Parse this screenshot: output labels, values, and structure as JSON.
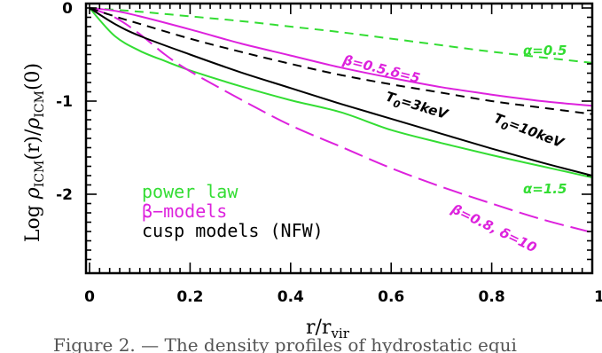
{
  "chart_data": {
    "type": "line",
    "xlabel_main": "r/r",
    "xlabel_sub": "vir",
    "ylabel_pre": "Log ",
    "ylabel_rho1": "ρ",
    "ylabel_sub1": "ICM",
    "ylabel_mid": "(r)/",
    "ylabel_rho2": "ρ",
    "ylabel_sub2": "ICM",
    "ylabel_post": "(0)",
    "xlim": [
      0,
      1
    ],
    "ylim": [
      -2.8,
      0.05
    ],
    "x_ticks": [
      0,
      0.2,
      0.4,
      0.6,
      0.8,
      1
    ],
    "x_tick_labels": [
      "0",
      "0.2",
      "0.4",
      "0.6",
      "0.8",
      "1"
    ],
    "y_ticks": [
      0,
      -1,
      -2
    ],
    "y_tick_labels": [
      "0",
      "-1",
      "-2"
    ],
    "colors": {
      "power_law": "#33dd33",
      "beta_models": "#dd22dd",
      "cusp_models": "#000000"
    },
    "series": [
      {
        "name": "α=0.5",
        "color": "#33dd33",
        "dash": "dashed",
        "x": [
          0,
          0.1,
          0.2,
          0.3,
          0.4,
          0.5,
          0.6,
          0.7,
          0.8,
          0.9,
          1.0
        ],
        "y": [
          0,
          -0.04,
          -0.09,
          -0.14,
          -0.2,
          -0.26,
          -0.33,
          -0.4,
          -0.47,
          -0.53,
          -0.59
        ]
      },
      {
        "name": "α=1.5",
        "color": "#33dd33",
        "dash": "solid",
        "x": [
          0,
          0.05,
          0.1,
          0.15,
          0.2,
          0.3,
          0.4,
          0.5,
          0.6,
          0.7,
          0.8,
          0.9,
          1.0
        ],
        "y": [
          0,
          -0.3,
          -0.46,
          -0.57,
          -0.67,
          -0.84,
          -0.99,
          -1.12,
          -1.31,
          -1.45,
          -1.58,
          -1.7,
          -1.82
        ]
      },
      {
        "name": "β=0.5,δ=5",
        "color": "#dd22dd",
        "dash": "solid",
        "x": [
          0,
          0.05,
          0.1,
          0.2,
          0.3,
          0.4,
          0.5,
          0.6,
          0.7,
          0.8,
          0.9,
          1.0
        ],
        "y": [
          0,
          -0.03,
          -0.09,
          -0.23,
          -0.38,
          -0.51,
          -0.64,
          -0.75,
          -0.85,
          -0.93,
          -1.0,
          -1.05
        ]
      },
      {
        "name": "β=0.8, δ=10",
        "color": "#dd22dd",
        "dash": "longdash",
        "x": [
          0,
          0.05,
          0.1,
          0.15,
          0.2,
          0.3,
          0.4,
          0.5,
          0.6,
          0.7,
          0.8,
          0.9,
          1.0
        ],
        "y": [
          0,
          -0.1,
          -0.28,
          -0.5,
          -0.68,
          -0.98,
          -1.26,
          -1.49,
          -1.72,
          -1.92,
          -2.1,
          -2.27,
          -2.41
        ]
      },
      {
        "name": "T0=3keV",
        "color": "#000000",
        "dash": "dashed",
        "x": [
          0,
          0.05,
          0.1,
          0.2,
          0.3,
          0.4,
          0.5,
          0.6,
          0.7,
          0.8,
          0.9,
          1.0
        ],
        "y": [
          0,
          -0.09,
          -0.17,
          -0.33,
          -0.47,
          -0.6,
          -0.72,
          -0.82,
          -0.91,
          -1.0,
          -1.07,
          -1.14
        ]
      },
      {
        "name": "T0=10keV",
        "color": "#000000",
        "dash": "solid",
        "x": [
          0,
          0.05,
          0.1,
          0.2,
          0.3,
          0.4,
          0.5,
          0.6,
          0.7,
          0.8,
          0.9,
          1.0
        ],
        "y": [
          0,
          -0.17,
          -0.3,
          -0.5,
          -0.69,
          -0.86,
          -1.03,
          -1.19,
          -1.35,
          -1.51,
          -1.66,
          -1.8
        ]
      }
    ],
    "annotations": [
      {
        "id": "alpha05",
        "text": "α=0.5",
        "color": "#33dd33"
      },
      {
        "id": "beta05",
        "text": "β=0.5,δ=5",
        "color": "#dd22dd"
      },
      {
        "id": "t3",
        "text_main": "T",
        "text_sub": "0",
        "text_rest": "=3keV",
        "color": "#000000"
      },
      {
        "id": "t10",
        "text_main": "T",
        "text_sub": "0",
        "text_rest": "=10keV",
        "color": "#000000"
      },
      {
        "id": "alpha15",
        "text": "α=1.5",
        "color": "#33dd33"
      },
      {
        "id": "beta08",
        "text": "β=0.8, δ=10",
        "color": "#dd22dd"
      }
    ],
    "legend": [
      {
        "label": "power law",
        "color": "#33dd33"
      },
      {
        "label": "β−models",
        "color": "#dd22dd"
      },
      {
        "label": "cusp models (NFW)",
        "color": "#000000"
      }
    ]
  },
  "caption": "Figure 2. — The density profiles of hydrostatic equi"
}
